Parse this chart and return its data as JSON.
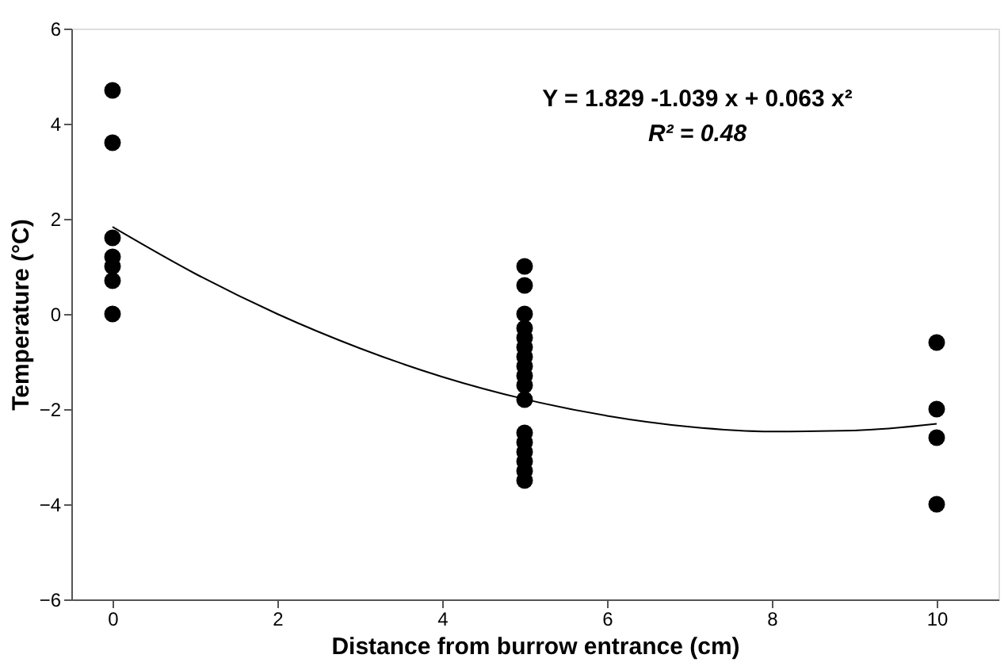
{
  "chart_data": {
    "type": "scatter",
    "xlabel": "Distance from burrow entrance (cm)",
    "ylabel": "Temperature (°C)",
    "series": [
      {
        "color": "#000000",
        "marker": "circle",
        "x": [
          0,
          0,
          0,
          0,
          0,
          0,
          0,
          5,
          5,
          5,
          5,
          5,
          5,
          5,
          5,
          5,
          5,
          5,
          5,
          5,
          5,
          5,
          5,
          5,
          10,
          10,
          10,
          10
        ],
        "values": [
          4.7,
          3.6,
          1.6,
          1.2,
          1.0,
          0.7,
          0.0,
          1.0,
          0.6,
          0.0,
          -0.3,
          -0.5,
          -0.7,
          -0.9,
          -1.1,
          -1.3,
          -1.5,
          -1.8,
          -2.5,
          -2.7,
          -2.9,
          -3.1,
          -3.3,
          -3.5,
          -0.6,
          -2.0,
          -2.6,
          -4.0
        ]
      },
      {
        "type": "line",
        "color": "#000000",
        "line_style": "solid",
        "x": [
          0,
          1,
          2,
          3,
          4,
          5,
          6,
          7,
          8,
          9,
          10
        ],
        "values": [
          1.83,
          0.85,
          0.0,
          -0.72,
          -1.32,
          -1.79,
          -2.14,
          -2.37,
          -2.47,
          -2.45,
          -2.31
        ]
      }
    ],
    "annotations": [
      "Y = 1.829 -1.039 x + 0.063 x²",
      "R² = 0.48"
    ],
    "xlim": [
      -0.5,
      10.75
    ],
    "xticks": [
      0,
      2,
      4,
      6,
      8,
      10
    ],
    "ylim": [
      -6,
      6
    ],
    "yticks": [
      -6,
      -4,
      -2,
      0,
      2,
      4,
      6
    ],
    "grid": false
  }
}
